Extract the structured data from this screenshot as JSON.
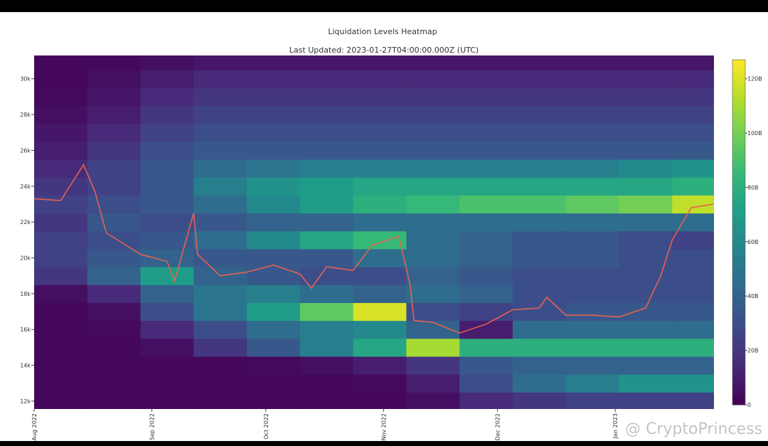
{
  "chart_data": {
    "type": "heatmap",
    "title": "Liquidation Levels Heatmap",
    "subtitle": "Last Updated: 2023-01-27T04:00:00.000Z (UTC)",
    "watermark": "@ CryptoPrincess",
    "xlim": [
      "2022-08-01",
      "2023-01-27"
    ],
    "xticks": [
      {
        "value": "2022-08-01",
        "label": "Aug 2022"
      },
      {
        "value": "2022-09-01",
        "label": "Sep 2022"
      },
      {
        "value": "2022-10-01",
        "label": "Oct 2022"
      },
      {
        "value": "2022-11-01",
        "label": "Nov 2022"
      },
      {
        "value": "2022-12-01",
        "label": "Dec 2022"
      },
      {
        "value": "2023-01-01",
        "label": "Jan 2023"
      }
    ],
    "ylim": [
      11560,
      31300
    ],
    "yticks": [
      {
        "value": 12000,
        "label": "12k"
      },
      {
        "value": 14000,
        "label": "14k"
      },
      {
        "value": 16000,
        "label": "16k"
      },
      {
        "value": 18000,
        "label": "18k"
      },
      {
        "value": 20000,
        "label": "20k"
      },
      {
        "value": 22000,
        "label": "22k"
      },
      {
        "value": 24000,
        "label": "24k"
      },
      {
        "value": 26000,
        "label": "26k"
      },
      {
        "value": 28000,
        "label": "28k"
      },
      {
        "value": 30000,
        "label": "30k"
      }
    ],
    "clim": [
      0,
      127
    ],
    "cticks": [
      0,
      {
        "value": 20,
        "label": "20B"
      },
      {
        "value": 40,
        "label": "40B"
      },
      {
        "value": 60,
        "label": "60B"
      },
      {
        "value": 80,
        "label": "80B"
      },
      {
        "value": 100,
        "label": "100B"
      },
      {
        "value": 120,
        "label": "120B"
      }
    ],
    "x_edges": [
      "2022-08-01",
      "2022-08-15",
      "2022-08-29",
      "2022-09-12",
      "2022-09-26",
      "2022-10-10",
      "2022-10-24",
      "2022-11-07",
      "2022-11-21",
      "2022-12-05",
      "2022-12-19",
      "2023-01-02",
      "2023-01-16",
      "2023-01-27"
    ],
    "y_bins": [
      11500,
      12500,
      13500,
      14500,
      15500,
      16500,
      17500,
      18500,
      19500,
      20500,
      21500,
      22500,
      23500,
      24500,
      25500,
      26500,
      27500,
      28500,
      29500,
      30500,
      31500
    ],
    "z": [
      [
        2,
        2,
        2,
        2,
        2,
        2,
        2,
        5,
        15,
        20,
        25,
        25,
        25
      ],
      [
        2,
        2,
        2,
        2,
        2,
        2,
        3,
        10,
        30,
        45,
        55,
        65,
        65
      ],
      [
        2,
        2,
        2,
        2,
        3,
        5,
        10,
        20,
        35,
        40,
        40,
        40,
        40
      ],
      [
        2,
        2,
        5,
        20,
        35,
        55,
        75,
        110,
        80,
        80,
        80,
        80,
        80
      ],
      [
        2,
        3,
        15,
        30,
        45,
        55,
        60,
        40,
        10,
        45,
        45,
        45,
        45
      ],
      [
        2,
        5,
        30,
        50,
        70,
        95,
        120,
        30,
        25,
        30,
        35,
        35,
        35
      ],
      [
        5,
        15,
        40,
        50,
        55,
        45,
        40,
        45,
        40,
        30,
        30,
        30,
        30
      ],
      [
        20,
        40,
        70,
        40,
        35,
        30,
        30,
        40,
        35,
        30,
        30,
        30,
        30
      ],
      [
        25,
        35,
        40,
        35,
        35,
        35,
        45,
        45,
        40,
        35,
        35,
        30,
        30
      ],
      [
        25,
        30,
        35,
        45,
        60,
        75,
        85,
        45,
        40,
        35,
        35,
        30,
        25
      ],
      [
        20,
        35,
        30,
        35,
        40,
        40,
        45,
        45,
        45,
        45,
        45,
        45,
        45
      ],
      [
        25,
        30,
        35,
        45,
        60,
        70,
        80,
        85,
        90,
        90,
        95,
        100,
        115
      ],
      [
        20,
        25,
        35,
        55,
        65,
        70,
        75,
        75,
        75,
        75,
        75,
        75,
        80
      ],
      [
        15,
        25,
        35,
        45,
        50,
        55,
        55,
        55,
        55,
        55,
        55,
        60,
        65
      ],
      [
        10,
        20,
        30,
        35,
        35,
        35,
        35,
        35,
        35,
        35,
        35,
        35,
        35
      ],
      [
        8,
        15,
        25,
        30,
        30,
        30,
        30,
        30,
        30,
        30,
        30,
        30,
        30
      ],
      [
        5,
        10,
        20,
        25,
        25,
        25,
        25,
        25,
        25,
        25,
        25,
        25,
        25
      ],
      [
        3,
        8,
        15,
        20,
        20,
        20,
        20,
        20,
        20,
        20,
        20,
        20,
        20
      ],
      [
        2,
        5,
        10,
        15,
        15,
        15,
        15,
        15,
        15,
        15,
        15,
        15,
        15
      ],
      [
        2,
        3,
        5,
        8,
        8,
        8,
        8,
        8,
        8,
        8,
        8,
        8,
        8
      ]
    ],
    "series": [
      {
        "color": "#e5614f",
        "x": [
          "2022-08-01",
          "2022-08-08",
          "2022-08-14",
          "2022-08-17",
          "2022-08-20",
          "2022-08-29",
          "2022-09-05",
          "2022-09-07",
          "2022-09-12",
          "2022-09-13",
          "2022-09-19",
          "2022-09-26",
          "2022-10-03",
          "2022-10-10",
          "2022-10-13",
          "2022-10-17",
          "2022-10-24",
          "2022-10-29",
          "2022-11-05",
          "2022-11-08",
          "2022-11-09",
          "2022-11-14",
          "2022-11-21",
          "2022-11-28",
          "2022-12-05",
          "2022-12-12",
          "2022-12-14",
          "2022-12-19",
          "2022-12-26",
          "2023-01-02",
          "2023-01-09",
          "2023-01-13",
          "2023-01-16",
          "2023-01-21",
          "2023-01-27"
        ],
        "values": [
          23300,
          23200,
          25200,
          23700,
          21400,
          20200,
          19800,
          18700,
          22500,
          20200,
          19000,
          19200,
          19600,
          19100,
          18300,
          19500,
          19300,
          20700,
          21200,
          18500,
          16500,
          16400,
          15800,
          16300,
          17100,
          17200,
          17800,
          16800,
          16800,
          16700,
          17200,
          19000,
          21000,
          22800,
          23000
        ]
      }
    ]
  }
}
